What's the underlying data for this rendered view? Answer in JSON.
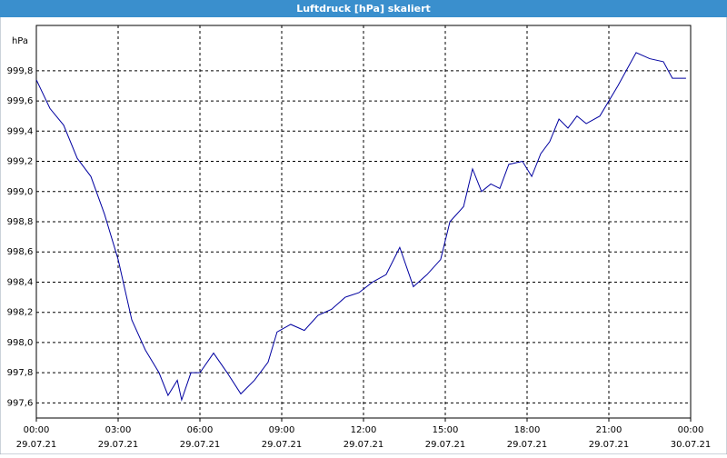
{
  "chart_data": {
    "type": "line",
    "title": "Luftdruck [hPa] skaliert",
    "y_unit": "hPa",
    "x": [
      0,
      0.5,
      1,
      1.5,
      2,
      2.5,
      3,
      3.5,
      4,
      4.5,
      4.83,
      5.17,
      5.33,
      5.67,
      6,
      6.5,
      7,
      7.5,
      8,
      8.5,
      8.83,
      9.33,
      9.83,
      10.33,
      10.83,
      11.33,
      11.83,
      12.33,
      12.83,
      13.33,
      13.83,
      14.33,
      14.83,
      15.17,
      15.67,
      16,
      16.33,
      16.67,
      17,
      17.33,
      17.83,
      18.17,
      18.5,
      18.83,
      19.17,
      19.5,
      19.83,
      20.17,
      20.67,
      21.33,
      22,
      22.5,
      23,
      23.33,
      23.83
    ],
    "series": [
      {
        "name": "Luftdruck",
        "color": "#0000a0",
        "values": [
          999.74,
          999.55,
          999.44,
          999.22,
          999.1,
          998.85,
          998.55,
          998.15,
          997.95,
          997.8,
          997.65,
          997.75,
          997.62,
          997.8,
          997.8,
          997.93,
          997.8,
          997.66,
          997.75,
          997.87,
          998.07,
          998.12,
          998.08,
          998.18,
          998.22,
          998.3,
          998.33,
          998.4,
          998.45,
          998.63,
          998.37,
          998.45,
          998.55,
          998.8,
          998.9,
          999.15,
          999.0,
          999.05,
          999.02,
          999.18,
          999.2,
          999.1,
          999.25,
          999.33,
          999.48,
          999.42,
          999.5,
          999.45,
          999.5,
          999.7,
          999.92,
          999.88,
          999.86,
          999.75,
          999.75
        ]
      }
    ],
    "xlim": [
      0,
      24
    ],
    "xticks": [
      {
        "value": 0,
        "label": "00:00"
      },
      {
        "value": 3,
        "label": "03:00"
      },
      {
        "value": 6,
        "label": "06:00"
      },
      {
        "value": 9,
        "label": "09:00"
      },
      {
        "value": 12,
        "label": "12:00"
      },
      {
        "value": 15,
        "label": "15:00"
      },
      {
        "value": 18,
        "label": "18:00"
      },
      {
        "value": 21,
        "label": "21:00"
      },
      {
        "value": 24,
        "label": "00:00"
      }
    ],
    "xtick_dates": [
      "29.07.21",
      "29.07.21",
      "29.07.21",
      "29.07.21",
      "29.07.21",
      "29.07.21",
      "29.07.21",
      "29.07.21",
      "30.07.21"
    ],
    "ylim": [
      997.5,
      1000.1
    ],
    "yticks": [
      {
        "value": 997.6,
        "label": "997,6"
      },
      {
        "value": 997.8,
        "label": "997,8"
      },
      {
        "value": 998.0,
        "label": "998,0"
      },
      {
        "value": 998.2,
        "label": "998,2"
      },
      {
        "value": 998.4,
        "label": "998,4"
      },
      {
        "value": 998.6,
        "label": "998,6"
      },
      {
        "value": 998.8,
        "label": "998,8"
      },
      {
        "value": 999.0,
        "label": "999,0"
      },
      {
        "value": 999.2,
        "label": "999,2"
      },
      {
        "value": 999.4,
        "label": "999,4"
      },
      {
        "value": 999.6,
        "label": "999,6"
      },
      {
        "value": 999.8,
        "label": "999,8"
      }
    ],
    "grid": true
  }
}
